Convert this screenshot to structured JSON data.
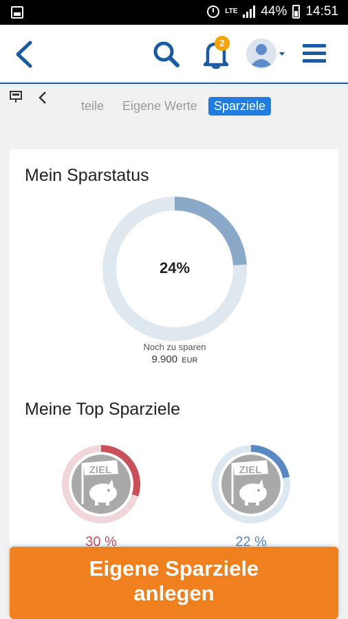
{
  "status_bar": {
    "network": "LTE",
    "battery": "44%",
    "time": "14:51"
  },
  "header": {
    "notification_count": "2",
    "icons": [
      "back-icon",
      "search-icon",
      "bell-icon",
      "avatar-icon",
      "menu-icon"
    ]
  },
  "tabs": {
    "partial_label": "teile",
    "eigene_label": "Eigene Werte",
    "active_label": "Sparziele"
  },
  "status_section": {
    "title": "Mein Sparstatus",
    "progress_percent": 24,
    "progress_label": "24%",
    "remaining_label": "Noch zu sparen",
    "remaining_value": "9.900",
    "remaining_currency": "EUR"
  },
  "top_goals": {
    "title": "Meine Top Sparziele",
    "goals": [
      {
        "badge": "ZIEL",
        "percent": 30,
        "percent_label": "30 %",
        "color": "#c8505a",
        "track": "#f1d6d9"
      },
      {
        "badge": "ZIEL",
        "percent": 22,
        "percent_label": "22 %",
        "color": "#5a88c4",
        "track": "#dde7f2"
      }
    ]
  },
  "cta": {
    "line1": "Eigene Sparziele",
    "line2": "anlegen"
  },
  "colors": {
    "accent": "#1f7de0",
    "brand_blue": "#1a5aa0",
    "cta": "#f07f1e",
    "progress": "#8aa9c8",
    "track": "#dfe7ef"
  }
}
